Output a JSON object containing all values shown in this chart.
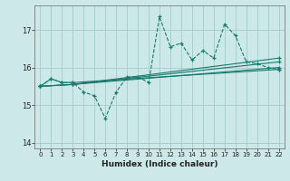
{
  "xlabel": "Humidex (Indice chaleur)",
  "bg_color": "#cce8e8",
  "grid_color": "#aacfcf",
  "line_color": "#1a7a6e",
  "xlim": [
    -0.5,
    22.5
  ],
  "ylim": [
    13.85,
    17.65
  ],
  "yticks": [
    14,
    15,
    16,
    17
  ],
  "xticks": [
    0,
    1,
    2,
    3,
    4,
    5,
    6,
    7,
    8,
    9,
    10,
    11,
    12,
    13,
    14,
    15,
    16,
    17,
    18,
    19,
    20,
    21,
    22
  ],
  "series": [
    {
      "x": [
        0,
        1,
        2,
        3,
        4,
        5,
        6,
        7,
        8,
        9,
        10,
        11,
        12,
        13,
        14,
        15,
        16,
        17,
        18,
        19,
        20,
        21,
        22
      ],
      "y": [
        15.5,
        15.7,
        15.6,
        15.6,
        15.35,
        15.25,
        14.65,
        15.35,
        15.75,
        15.75,
        15.6,
        17.35,
        16.55,
        16.65,
        16.2,
        16.45,
        16.25,
        17.15,
        16.85,
        16.15,
        16.1,
        16.0,
        15.95
      ],
      "linestyle": "--",
      "marker": "+"
    },
    {
      "x": [
        0,
        1,
        2,
        3,
        22
      ],
      "y": [
        15.5,
        15.7,
        15.6,
        15.6,
        15.95
      ],
      "linestyle": "-",
      "marker": "+"
    },
    {
      "x": [
        0,
        3,
        22
      ],
      "y": [
        15.5,
        15.55,
        16.0
      ],
      "linestyle": "-",
      "marker": "+"
    },
    {
      "x": [
        0,
        3,
        22
      ],
      "y": [
        15.5,
        15.55,
        16.15
      ],
      "linestyle": "-",
      "marker": "+"
    },
    {
      "x": [
        0,
        3,
        22
      ],
      "y": [
        15.5,
        15.55,
        16.25
      ],
      "linestyle": "-",
      "marker": "+"
    }
  ]
}
